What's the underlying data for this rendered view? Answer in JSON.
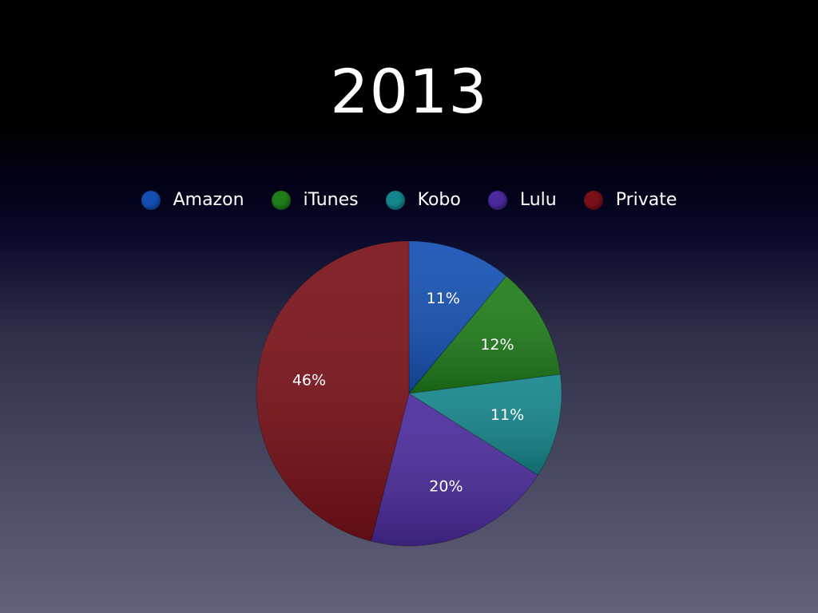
{
  "title": "2013",
  "chart_data": {
    "type": "pie",
    "title": "2013",
    "legend_placement": "top",
    "slices": [
      {
        "name": "Amazon",
        "value": 11,
        "label": "11%",
        "color": "#1450b4"
      },
      {
        "name": "iTunes",
        "value": 12,
        "label": "12%",
        "color": "#1f7d1a"
      },
      {
        "name": "Kobo",
        "value": 11,
        "label": "11%",
        "color": "#14868c"
      },
      {
        "name": "Lulu",
        "value": 20,
        "label": "20%",
        "color": "#4a2a9c"
      },
      {
        "name": "Private",
        "value": 46,
        "label": "46%",
        "color": "#7a1018"
      }
    ]
  }
}
